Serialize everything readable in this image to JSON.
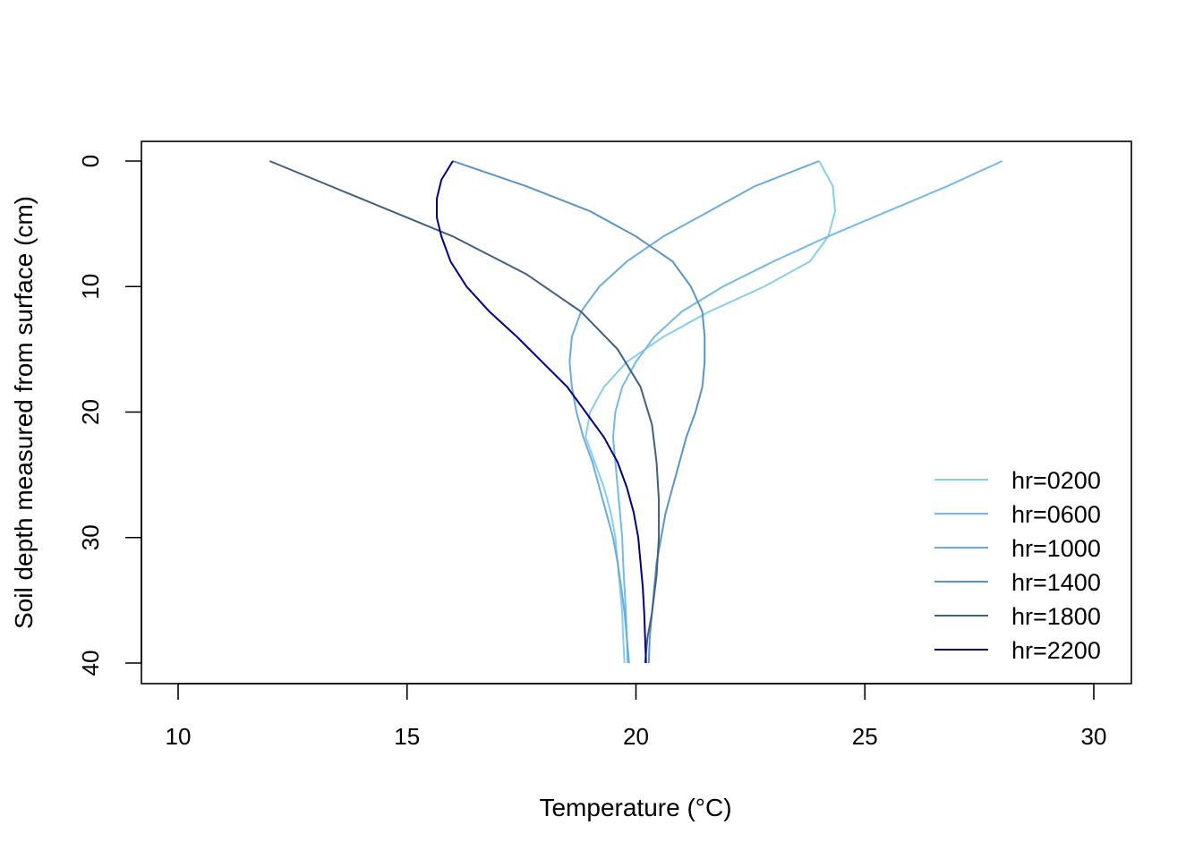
{
  "chart_data": {
    "type": "line",
    "title": "",
    "xlabel": "Temperature (°C)",
    "ylabel": "Soil depth measured from surface (cm)",
    "xlim": [
      10,
      30
    ],
    "ylim": [
      40,
      0
    ],
    "y_reversed": true,
    "x_ticks": [
      10,
      15,
      20,
      25,
      30
    ],
    "y_ticks": [
      0,
      10,
      20,
      30,
      40
    ],
    "grid": false,
    "legend_position": "bottom-right",
    "series": [
      {
        "name": "hr=0200",
        "color": "#87ceeb",
        "points": [
          [
            24.0,
            0
          ],
          [
            24.3,
            2
          ],
          [
            24.35,
            4
          ],
          [
            24.2,
            6
          ],
          [
            23.8,
            8
          ],
          [
            22.8,
            10
          ],
          [
            21.6,
            12
          ],
          [
            20.6,
            14
          ],
          [
            19.8,
            16
          ],
          [
            19.3,
            18
          ],
          [
            19.0,
            20
          ],
          [
            18.9,
            22
          ],
          [
            19.1,
            24
          ],
          [
            19.3,
            26
          ],
          [
            19.45,
            28
          ],
          [
            19.55,
            30
          ],
          [
            19.6,
            32
          ],
          [
            19.65,
            34
          ],
          [
            19.7,
            36
          ],
          [
            19.72,
            38
          ],
          [
            19.75,
            40
          ]
        ]
      },
      {
        "name": "hr=0600",
        "color": "#74b9e8",
        "points": [
          [
            28.0,
            0
          ],
          [
            26.8,
            2
          ],
          [
            25.5,
            4
          ],
          [
            24.2,
            6
          ],
          [
            23.0,
            8
          ],
          [
            21.9,
            10
          ],
          [
            21.0,
            12
          ],
          [
            20.4,
            14
          ],
          [
            20.0,
            16
          ],
          [
            19.7,
            18
          ],
          [
            19.55,
            20
          ],
          [
            19.5,
            22
          ],
          [
            19.55,
            24
          ],
          [
            19.6,
            26
          ],
          [
            19.65,
            28
          ],
          [
            19.7,
            30
          ],
          [
            19.72,
            32
          ],
          [
            19.75,
            34
          ],
          [
            19.78,
            36
          ],
          [
            19.8,
            38
          ],
          [
            19.82,
            40
          ]
        ]
      },
      {
        "name": "hr=1000",
        "color": "#6aacde",
        "points": [
          [
            24.0,
            0
          ],
          [
            22.6,
            2
          ],
          [
            21.6,
            4
          ],
          [
            20.6,
            6
          ],
          [
            19.8,
            8
          ],
          [
            19.2,
            10
          ],
          [
            18.8,
            12
          ],
          [
            18.6,
            14
          ],
          [
            18.55,
            16
          ],
          [
            18.6,
            18
          ],
          [
            18.7,
            20
          ],
          [
            18.85,
            22
          ],
          [
            19.05,
            24
          ],
          [
            19.2,
            26
          ],
          [
            19.35,
            28
          ],
          [
            19.5,
            30
          ],
          [
            19.6,
            32
          ],
          [
            19.68,
            34
          ],
          [
            19.75,
            36
          ],
          [
            19.8,
            38
          ],
          [
            19.85,
            40
          ]
        ]
      },
      {
        "name": "hr=1400",
        "color": "#5a94c4",
        "points": [
          [
            16.0,
            0
          ],
          [
            17.6,
            2
          ],
          [
            19.0,
            4
          ],
          [
            20.0,
            6
          ],
          [
            20.8,
            8
          ],
          [
            21.2,
            10
          ],
          [
            21.45,
            12
          ],
          [
            21.5,
            14
          ],
          [
            21.5,
            16
          ],
          [
            21.45,
            18
          ],
          [
            21.3,
            20
          ],
          [
            21.1,
            22
          ],
          [
            20.95,
            24
          ],
          [
            20.8,
            26
          ],
          [
            20.65,
            28
          ],
          [
            20.55,
            30
          ],
          [
            20.45,
            32
          ],
          [
            20.4,
            34
          ],
          [
            20.35,
            36
          ],
          [
            20.3,
            38
          ],
          [
            20.28,
            40
          ]
        ]
      },
      {
        "name": "hr=1800",
        "color": "#40607f",
        "points": [
          [
            12.0,
            0
          ],
          [
            14.0,
            3
          ],
          [
            16.0,
            6
          ],
          [
            17.6,
            9
          ],
          [
            18.8,
            12
          ],
          [
            19.6,
            15
          ],
          [
            20.1,
            18
          ],
          [
            20.35,
            21
          ],
          [
            20.45,
            24
          ],
          [
            20.5,
            27
          ],
          [
            20.5,
            30
          ],
          [
            20.45,
            33
          ],
          [
            20.35,
            36
          ],
          [
            20.25,
            38
          ],
          [
            20.2,
            40
          ]
        ]
      },
      {
        "name": "hr=2200",
        "color": "#00007f",
        "points": [
          [
            16.0,
            0
          ],
          [
            15.75,
            1.5
          ],
          [
            15.65,
            3
          ],
          [
            15.65,
            4.5
          ],
          [
            15.75,
            6
          ],
          [
            15.95,
            8
          ],
          [
            16.3,
            10
          ],
          [
            16.8,
            12
          ],
          [
            17.4,
            14
          ],
          [
            17.95,
            16
          ],
          [
            18.5,
            18
          ],
          [
            18.9,
            20
          ],
          [
            19.3,
            22
          ],
          [
            19.6,
            24
          ],
          [
            19.8,
            26
          ],
          [
            19.95,
            28
          ],
          [
            20.05,
            30
          ],
          [
            20.1,
            32
          ],
          [
            20.15,
            34
          ],
          [
            20.18,
            36
          ],
          [
            20.2,
            38
          ],
          [
            20.22,
            40
          ]
        ]
      }
    ]
  }
}
